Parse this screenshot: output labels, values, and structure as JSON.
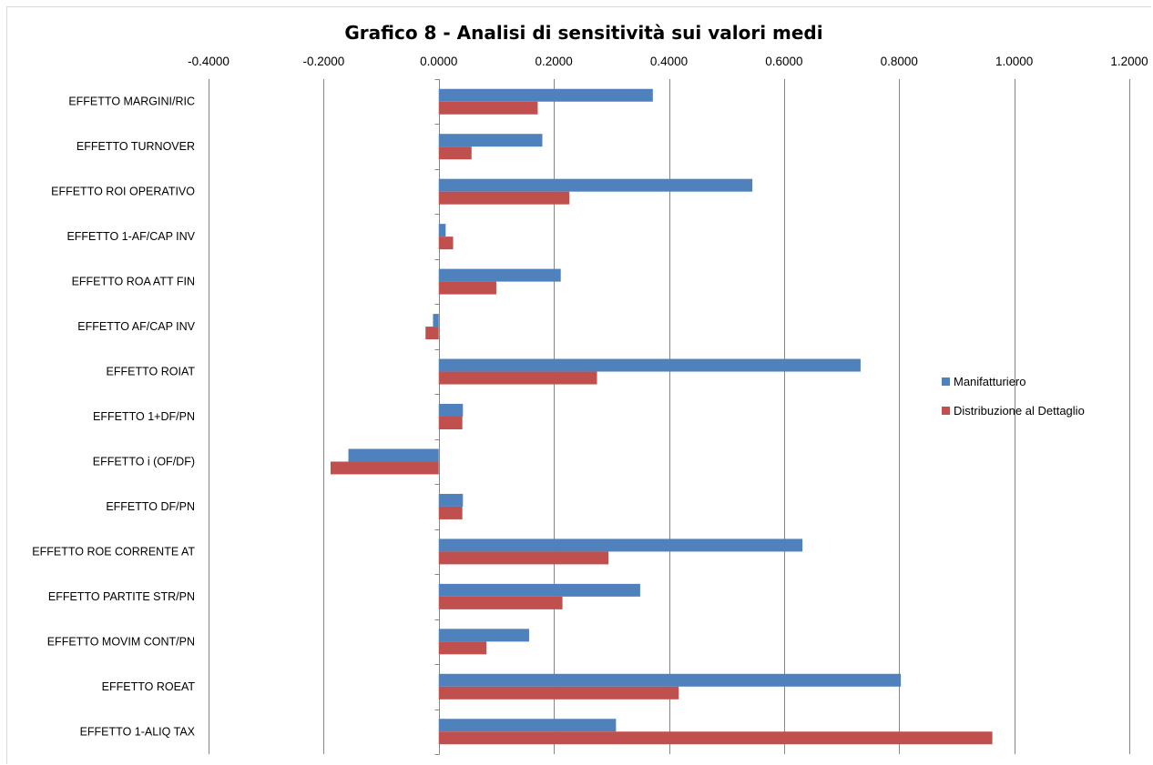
{
  "chart_data": {
    "type": "bar",
    "orientation": "horizontal",
    "title": "Grafico 8 - Analisi di sensitività sui valori medi",
    "xlabel": "",
    "ylabel": "",
    "xlim": [
      -0.4,
      1.2
    ],
    "x_ticks": [
      -0.4,
      -0.2,
      0.0,
      0.2,
      0.4,
      0.6,
      0.8,
      1.0,
      1.2
    ],
    "x_tick_labels": [
      "-0.4000",
      "-0.2000",
      "0.0000",
      "0.2000",
      "0.4000",
      "0.6000",
      "0.8000",
      "1.0000",
      "1.2000"
    ],
    "x_axis_position": "top",
    "grid": "vertical",
    "legend_position": "right",
    "categories": [
      "EFFETTO MARGINI/RIC",
      "EFFETTO TURNOVER",
      "EFFETTO ROI OPERATIVO",
      "EFFETTO 1-AF/CAP INV",
      "EFFETTO ROA ATT FIN",
      "EFFETTO AF/CAP INV",
      "EFFETTO ROIAT",
      "EFFETTO 1+DF/PN",
      "EFFETTO i (OF/DF)",
      "EFFETTO DF/PN",
      "EFFETTO ROE CORRENTE AT",
      "EFFETTO PARTITE STR/PN",
      "EFFETTO MOVIM CONT/PN",
      "EFFETTO ROEAT",
      "EFFETTO 1-ALIQ TAX"
    ],
    "series": [
      {
        "name": "Manifatturiero",
        "color": "#4f81bd",
        "values": [
          0.372,
          0.18,
          0.545,
          0.012,
          0.212,
          -0.01,
          0.733,
          0.042,
          -0.157,
          0.042,
          0.632,
          0.35,
          0.157,
          0.803,
          0.308
        ]
      },
      {
        "name": "Distribuzione al Dettaglio",
        "color": "#c0504d",
        "values": [
          0.172,
          0.057,
          0.227,
          0.025,
          0.1,
          -0.023,
          0.275,
          0.041,
          -0.188,
          0.041,
          0.295,
          0.215,
          0.083,
          0.417,
          0.962
        ]
      }
    ]
  },
  "colors": {
    "grid": "#868686",
    "frame": "#d9d9d9"
  }
}
